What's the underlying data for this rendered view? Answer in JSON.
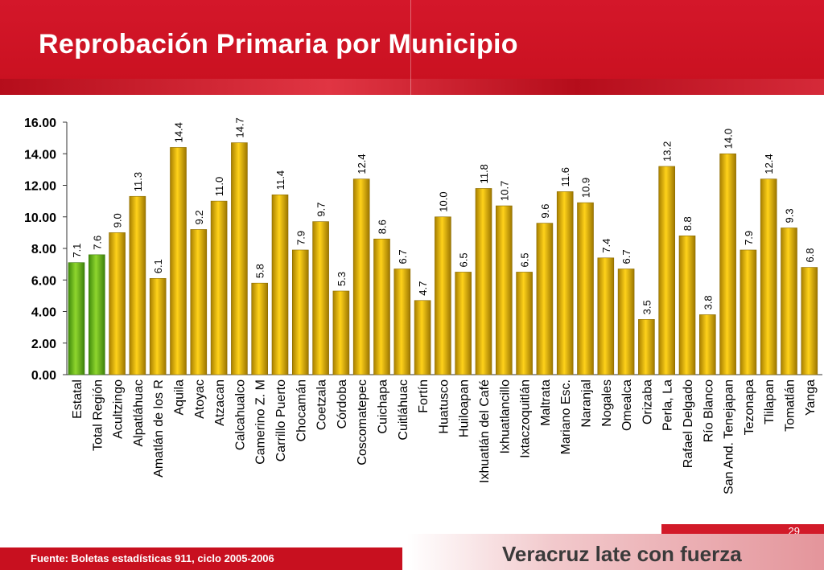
{
  "header": {
    "title": "Reprobación Primaria por Municipio"
  },
  "footer": {
    "source": "Fuente: Boletas estadísticas 911, ciclo 2005-2006",
    "page_number": "29",
    "slogan": "Veracruz late con fuerza"
  },
  "colors": {
    "header_red": "#c8101f",
    "bar_gold": "#e1b300",
    "bar_green": "#6fbf1a"
  },
  "chart_data": {
    "type": "bar",
    "title": "",
    "xlabel": "",
    "ylabel": "",
    "ylim": [
      0,
      16
    ],
    "yticks": [
      "0.00",
      "2.00",
      "4.00",
      "6.00",
      "8.00",
      "10.00",
      "12.00",
      "14.00",
      "16.00"
    ],
    "grid": false,
    "categories": [
      "Estatal",
      "Total Región",
      "Acultzingo",
      "Alpatláhuac",
      "Amatlán de los R",
      "Aquila",
      "Atoyac",
      "Atzacan",
      "Calcahualco",
      "Camerino Z. M",
      "Carrillo Puerto",
      "Chocamán",
      "Coetzala",
      "Córdoba",
      "Coscomatepec",
      "Cuichapa",
      "Cuitláhuac",
      "Fortín",
      "Huatusco",
      "Huiloapan",
      "Ixhuatlán del Café",
      "Ixhuatlancillo",
      "Ixtaczoquitlán",
      "Maltrata",
      "Mariano Esc.",
      "Naranjal",
      "Nogales",
      "Omealca",
      "Orizaba",
      "Perla, La",
      "Rafael Delgado",
      "Río Blanco",
      "San And. Tenejapan",
      "Tezonapa",
      "Tlilapan",
      "Tomatlán",
      "Yanga"
    ],
    "values": [
      7.1,
      7.6,
      9.0,
      11.3,
      6.1,
      14.4,
      9.2,
      11.0,
      14.7,
      5.8,
      11.4,
      7.9,
      9.7,
      5.3,
      12.4,
      8.6,
      6.7,
      4.7,
      10.0,
      6.5,
      11.8,
      10.7,
      6.5,
      9.6,
      11.6,
      10.9,
      7.4,
      6.7,
      3.5,
      13.2,
      8.8,
      3.8,
      14.0,
      7.9,
      12.4,
      9.3,
      6.8
    ],
    "value_labels": [
      "7.1",
      "7.6",
      "9.0",
      "11.3",
      "6.1",
      "14.4",
      "9.2",
      "11.0",
      "14.7",
      "5.8",
      "11.4",
      "7.9",
      "9.7",
      "5.3",
      "12.4",
      "8.6",
      "6.7",
      "4.7",
      "10.0",
      "6.5",
      "11.8",
      "10.7",
      "6.5",
      "9.6",
      "11.6",
      "10.9",
      "7.4",
      "6.7",
      "3.5",
      "13.2",
      "8.8",
      "3.8",
      "14.0",
      "7.9",
      "12.4",
      "9.3",
      "6.8"
    ],
    "highlighted": [
      "Estatal",
      "Total Región"
    ]
  }
}
